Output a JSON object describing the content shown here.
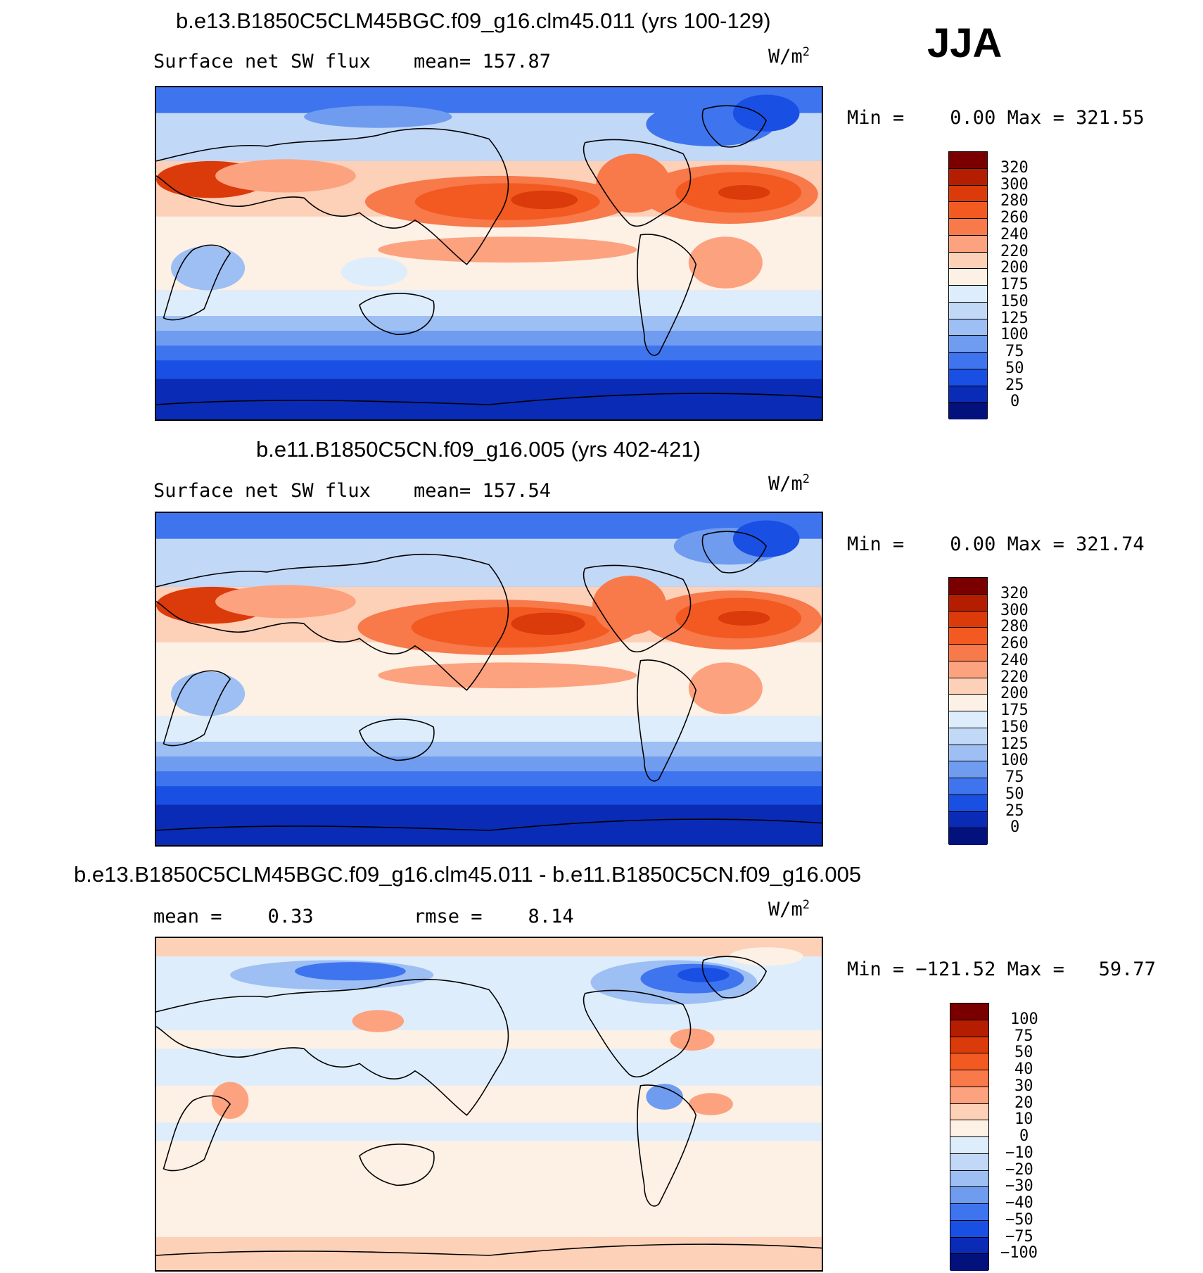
{
  "season": "JJA",
  "panels": [
    {
      "title": "b.e13.B1850C5CLM45BGC.f09_g16.clm45.011 (yrs 100-129)",
      "left_label": "Surface net SW flux",
      "mid_label": "mean= 157.87",
      "unit": "W/m",
      "unit_exp": "2",
      "minmax": "Min =    0.00 Max = 321.55",
      "colorbar": {
        "labels": [
          "320",
          "300",
          "280",
          "260",
          "240",
          "220",
          "200",
          "175",
          "150",
          "125",
          "100",
          "75",
          "50",
          "25",
          "0"
        ],
        "colors": [
          "#7a0000",
          "#b51d00",
          "#db3a0a",
          "#f25a22",
          "#f8794a",
          "#fca27f",
          "#fdd0b8",
          "#fdf0e5",
          "#deedfb",
          "#c2d8f7",
          "#9dbff3",
          "#6f9cef",
          "#3e74ee",
          "#1a4fe3",
          "#0a2bb5",
          "#03117d"
        ]
      }
    },
    {
      "title": "b.e11.B1850C5CN.f09_g16.005 (yrs 402-421)",
      "left_label": "Surface net SW flux",
      "mid_label": "mean= 157.54",
      "unit": "W/m",
      "unit_exp": "2",
      "minmax": "Min =    0.00 Max = 321.74",
      "colorbar": {
        "labels": [
          "320",
          "300",
          "280",
          "260",
          "240",
          "220",
          "200",
          "175",
          "150",
          "125",
          "100",
          "75",
          "50",
          "25",
          "0"
        ],
        "colors": [
          "#7a0000",
          "#b51d00",
          "#db3a0a",
          "#f25a22",
          "#f8794a",
          "#fca27f",
          "#fdd0b8",
          "#fdf0e5",
          "#deedfb",
          "#c2d8f7",
          "#9dbff3",
          "#6f9cef",
          "#3e74ee",
          "#1a4fe3",
          "#0a2bb5",
          "#03117d"
        ]
      }
    },
    {
      "title": "b.e13.B1850C5CLM45BGC.f09_g16.clm45.011 - b.e11.B1850C5CN.f09_g16.005",
      "left_label": "mean =    0.33",
      "mid_label": "rmse =    8.14",
      "unit": "W/m",
      "unit_exp": "2",
      "minmax": "Min = −121.52 Max =   59.77",
      "colorbar": {
        "labels": [
          "100",
          "75",
          "50",
          "40",
          "30",
          "20",
          "10",
          "0",
          "−10",
          "−20",
          "−30",
          "−40",
          "−50",
          "−75",
          "−100"
        ],
        "colors": [
          "#7a0000",
          "#b51d00",
          "#db3a0a",
          "#f25a22",
          "#f8794a",
          "#fca27f",
          "#fdd0b8",
          "#fdf0e5",
          "#deedfb",
          "#c2d8f7",
          "#9dbff3",
          "#6f9cef",
          "#3e74ee",
          "#1a4fe3",
          "#0a2bb5",
          "#03117d"
        ]
      }
    }
  ],
  "colors": {
    "ocean_south_deep": "#0a2bb5",
    "ocean_mid": "#1a4fe3",
    "warm_high": "#db3a0a",
    "warm_mid": "#f8794a",
    "warm_low": "#fdd0b8",
    "neutral": "#fdf0e5",
    "cool_low": "#deedfb",
    "cool_mid": "#9dbff3"
  }
}
